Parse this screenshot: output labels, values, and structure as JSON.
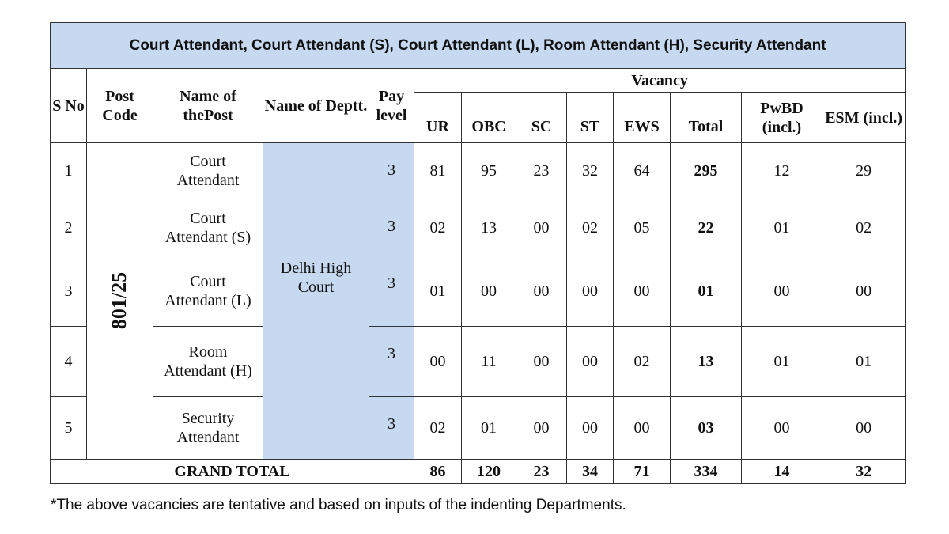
{
  "title": "Court Attendant, Court Attendant (S), Court Attendant (L), Room Attendant (H), Security Attendant",
  "headers": {
    "sno": "S No",
    "post_code": "Post Code",
    "post_name": "Name of thePost",
    "dept": "Name of Deptt.",
    "pay": "Pay level",
    "vacancy": "Vacancy",
    "cols": [
      "UR",
      "OBC",
      "SC",
      "ST",
      "EWS",
      "Total",
      "PwBD (incl.)",
      "ESM (incl.)"
    ]
  },
  "post_code": "801/25",
  "dept": "Delhi High Court",
  "rows": [
    {
      "sno": "1",
      "post": "Court Attendant",
      "pay": "3",
      "v": [
        "81",
        "95",
        "23",
        "32",
        "64",
        "295",
        "12",
        "29"
      ]
    },
    {
      "sno": "2",
      "post": "Court Attendant (S)",
      "pay": "3",
      "v": [
        "02",
        "13",
        "00",
        "02",
        "05",
        "22",
        "01",
        "02"
      ]
    },
    {
      "sno": "3",
      "post": "Court Attendant (L)",
      "pay": "3",
      "v": [
        "01",
        "00",
        "00",
        "00",
        "00",
        "01",
        "00",
        "00"
      ]
    },
    {
      "sno": "4",
      "post": "Room Attendant (H)",
      "pay": "3",
      "v": [
        "00",
        "11",
        "00",
        "00",
        "02",
        "13",
        "01",
        "01"
      ]
    },
    {
      "sno": "5",
      "post": "Security Attendant",
      "pay": "3",
      "v": [
        "02",
        "01",
        "00",
        "00",
        "00",
        "03",
        "00",
        "00"
      ]
    }
  ],
  "grand_total": {
    "label": "GRAND TOTAL",
    "v": [
      "86",
      "120",
      "23",
      "34",
      "71",
      "334",
      "14",
      "32"
    ]
  },
  "note": "*The above vacancies are tentative and based on inputs of the indenting Departments."
}
